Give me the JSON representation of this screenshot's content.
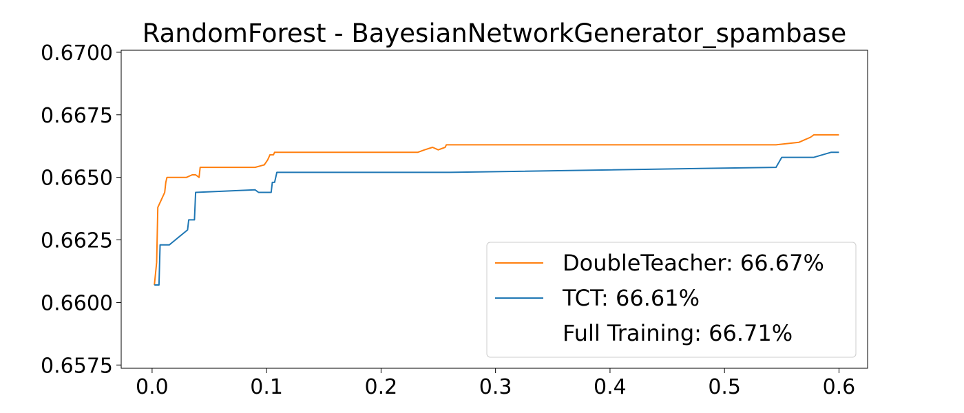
{
  "chart_data": {
    "type": "line",
    "title": "RandomForest - BayesianNetworkGenerator_spambase",
    "xlabel": "",
    "ylabel": "",
    "xlim": [
      -0.027,
      0.625
    ],
    "ylim": [
      0.65737,
      0.67008
    ],
    "x_ticks": [
      0.0,
      0.1,
      0.2,
      0.3,
      0.4,
      0.5,
      0.6
    ],
    "x_tick_labels": [
      "0.0",
      "0.1",
      "0.2",
      "0.3",
      "0.4",
      "0.5",
      "0.6"
    ],
    "y_ticks": [
      0.6575,
      0.66,
      0.6625,
      0.665,
      0.6675,
      0.67
    ],
    "y_tick_labels": [
      "0.6575",
      "0.6600",
      "0.6625",
      "0.6650",
      "0.6675",
      "0.6700"
    ],
    "grid": false,
    "legend_position": "lower-right",
    "series": [
      {
        "name": "DoubleTeacher: 66.67%",
        "color": "#ff7f0e",
        "points": [
          [
            0.002,
            0.6607
          ],
          [
            0.004,
            0.6616
          ],
          [
            0.005,
            0.6638
          ],
          [
            0.008,
            0.6641
          ],
          [
            0.011,
            0.6644
          ],
          [
            0.012,
            0.6648
          ],
          [
            0.013,
            0.665
          ],
          [
            0.015,
            0.665
          ],
          [
            0.03,
            0.665
          ],
          [
            0.035,
            0.6651
          ],
          [
            0.038,
            0.6651
          ],
          [
            0.041,
            0.665
          ],
          [
            0.042,
            0.6654
          ],
          [
            0.09,
            0.6654
          ],
          [
            0.098,
            0.6655
          ],
          [
            0.101,
            0.6657
          ],
          [
            0.103,
            0.6659
          ],
          [
            0.106,
            0.6659
          ],
          [
            0.107,
            0.666
          ],
          [
            0.232,
            0.666
          ],
          [
            0.238,
            0.6661
          ],
          [
            0.245,
            0.6662
          ],
          [
            0.25,
            0.6661
          ],
          [
            0.256,
            0.6662
          ],
          [
            0.257,
            0.6663
          ],
          [
            0.545,
            0.6663
          ],
          [
            0.565,
            0.6664
          ],
          [
            0.57,
            0.6665
          ],
          [
            0.575,
            0.6666
          ],
          [
            0.578,
            0.6667
          ],
          [
            0.6,
            0.6667
          ]
        ]
      },
      {
        "name": "TCT: 66.61%",
        "color": "#1f77b4",
        "points": [
          [
            0.002,
            0.6607
          ],
          [
            0.006,
            0.6607
          ],
          [
            0.007,
            0.6623
          ],
          [
            0.015,
            0.6623
          ],
          [
            0.031,
            0.6629
          ],
          [
            0.032,
            0.6633
          ],
          [
            0.037,
            0.6633
          ],
          [
            0.038,
            0.6644
          ],
          [
            0.09,
            0.6645
          ],
          [
            0.093,
            0.6644
          ],
          [
            0.104,
            0.6644
          ],
          [
            0.105,
            0.6648
          ],
          [
            0.107,
            0.6648
          ],
          [
            0.109,
            0.6652
          ],
          [
            0.26,
            0.6652
          ],
          [
            0.545,
            0.6654
          ],
          [
            0.55,
            0.6658
          ],
          [
            0.578,
            0.6658
          ],
          [
            0.593,
            0.666
          ],
          [
            0.6,
            0.666
          ]
        ]
      },
      {
        "name": "Full Training: 66.71%",
        "color": "#2ca02c",
        "points": []
      }
    ]
  }
}
